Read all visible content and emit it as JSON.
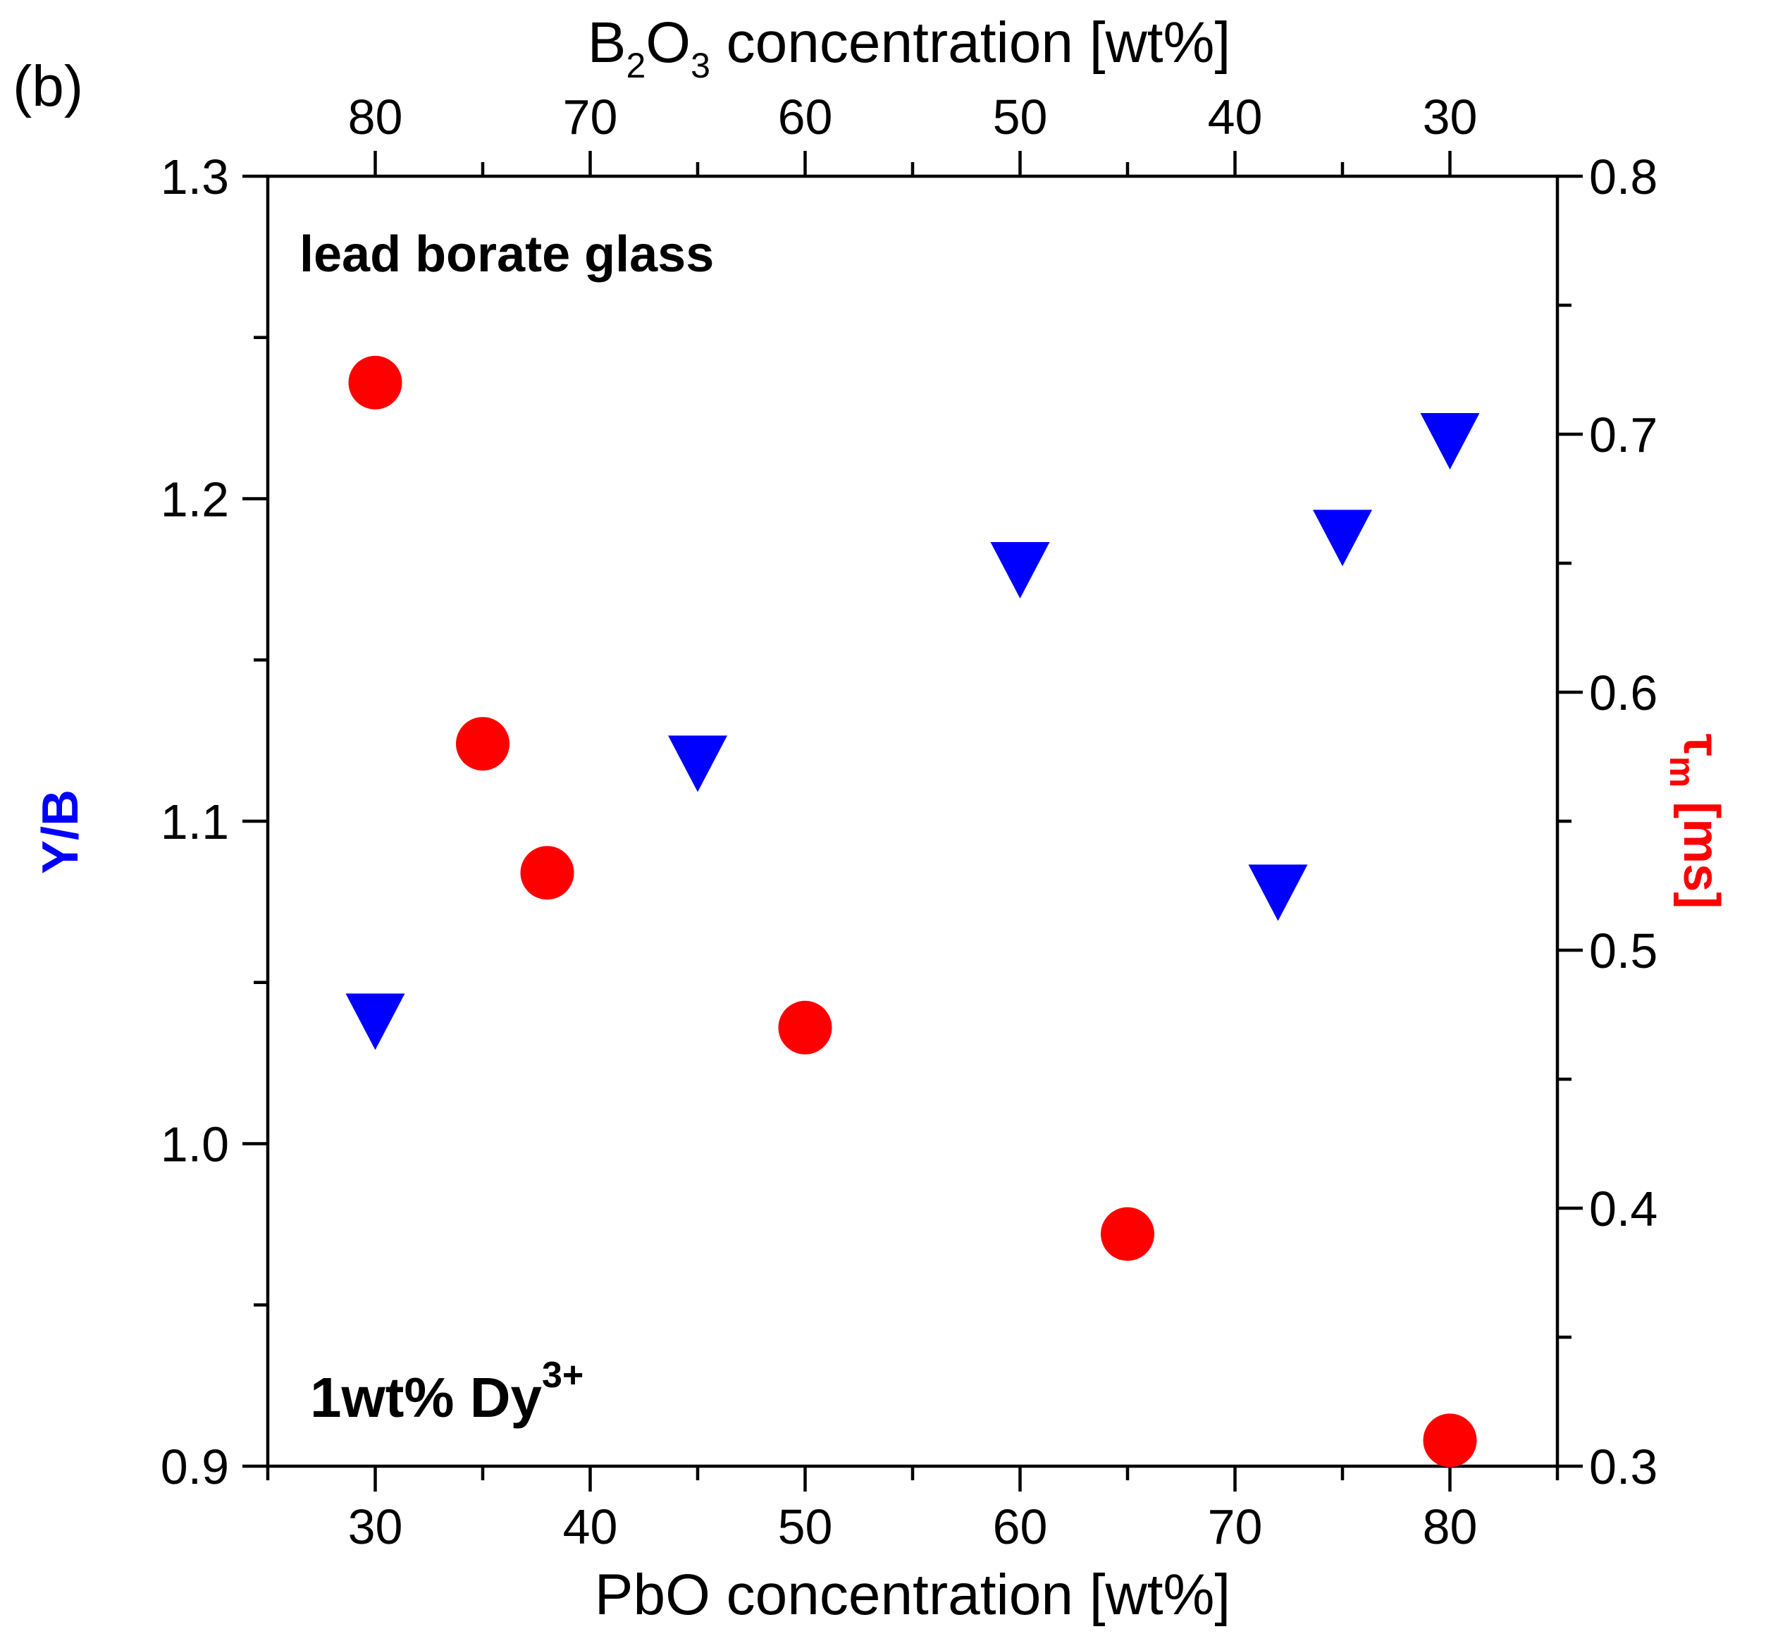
{
  "chart_data": {
    "type": "scatter",
    "panel_label": "(b)",
    "annotations": {
      "glass_label": "lead borate glass",
      "dopant_main": "1wt% Dy",
      "dopant_sup": "3+"
    },
    "x_axis": {
      "label": "PbO concentration [wt%]",
      "range": [
        25,
        85
      ],
      "ticks": [
        30,
        40,
        50,
        60,
        70,
        80
      ],
      "minor_ticks": [
        25,
        35,
        45,
        55,
        65,
        75,
        85
      ]
    },
    "top_axis": {
      "label_parts": {
        "b": "B",
        "sub2": "2",
        "o": "O",
        "sub3": "3",
        "rest": " concentration [wt%]"
      },
      "ticks": [
        80,
        70,
        60,
        50,
        40,
        30
      ],
      "tick_positions_pbo": [
        30,
        40,
        50,
        60,
        70,
        80
      ],
      "minor_positions_pbo": [
        35,
        45,
        55,
        65,
        75
      ]
    },
    "y_left": {
      "label": "Y/B",
      "color": "#0000ff",
      "range": [
        0.9,
        1.3
      ],
      "ticks": [
        "0.9",
        "1.0",
        "1.1",
        "1.2",
        "1.3"
      ],
      "tick_values": [
        0.9,
        1.0,
        1.1,
        1.2,
        1.3
      ],
      "minor_ticks": [
        0.95,
        1.05,
        1.15,
        1.25
      ]
    },
    "y_right": {
      "label_parts": {
        "tau": "τ",
        "sub": "m",
        "unit": " [ms]"
      },
      "color": "#ff0000",
      "range": [
        0.3,
        0.8
      ],
      "ticks": [
        "0.3",
        "0.4",
        "0.5",
        "0.6",
        "0.7",
        "0.8"
      ],
      "tick_values": [
        0.3,
        0.4,
        0.5,
        0.6,
        0.7,
        0.8
      ],
      "minor_ticks": [
        0.35,
        0.45,
        0.55,
        0.65,
        0.75
      ]
    },
    "series": [
      {
        "name": "Y/B",
        "axis": "left",
        "marker": "triangle-down",
        "color": "#0000ff",
        "x": [
          30,
          45,
          60,
          72,
          75,
          80
        ],
        "y": [
          1.04,
          1.12,
          1.18,
          1.08,
          1.19,
          1.22
        ]
      },
      {
        "name": "τm [ms]",
        "axis": "right",
        "marker": "circle",
        "color": "#ff0000",
        "x": [
          30,
          35,
          38,
          50,
          65,
          80
        ],
        "y": [
          0.72,
          0.58,
          0.53,
          0.47,
          0.39,
          0.31
        ]
      }
    ]
  }
}
